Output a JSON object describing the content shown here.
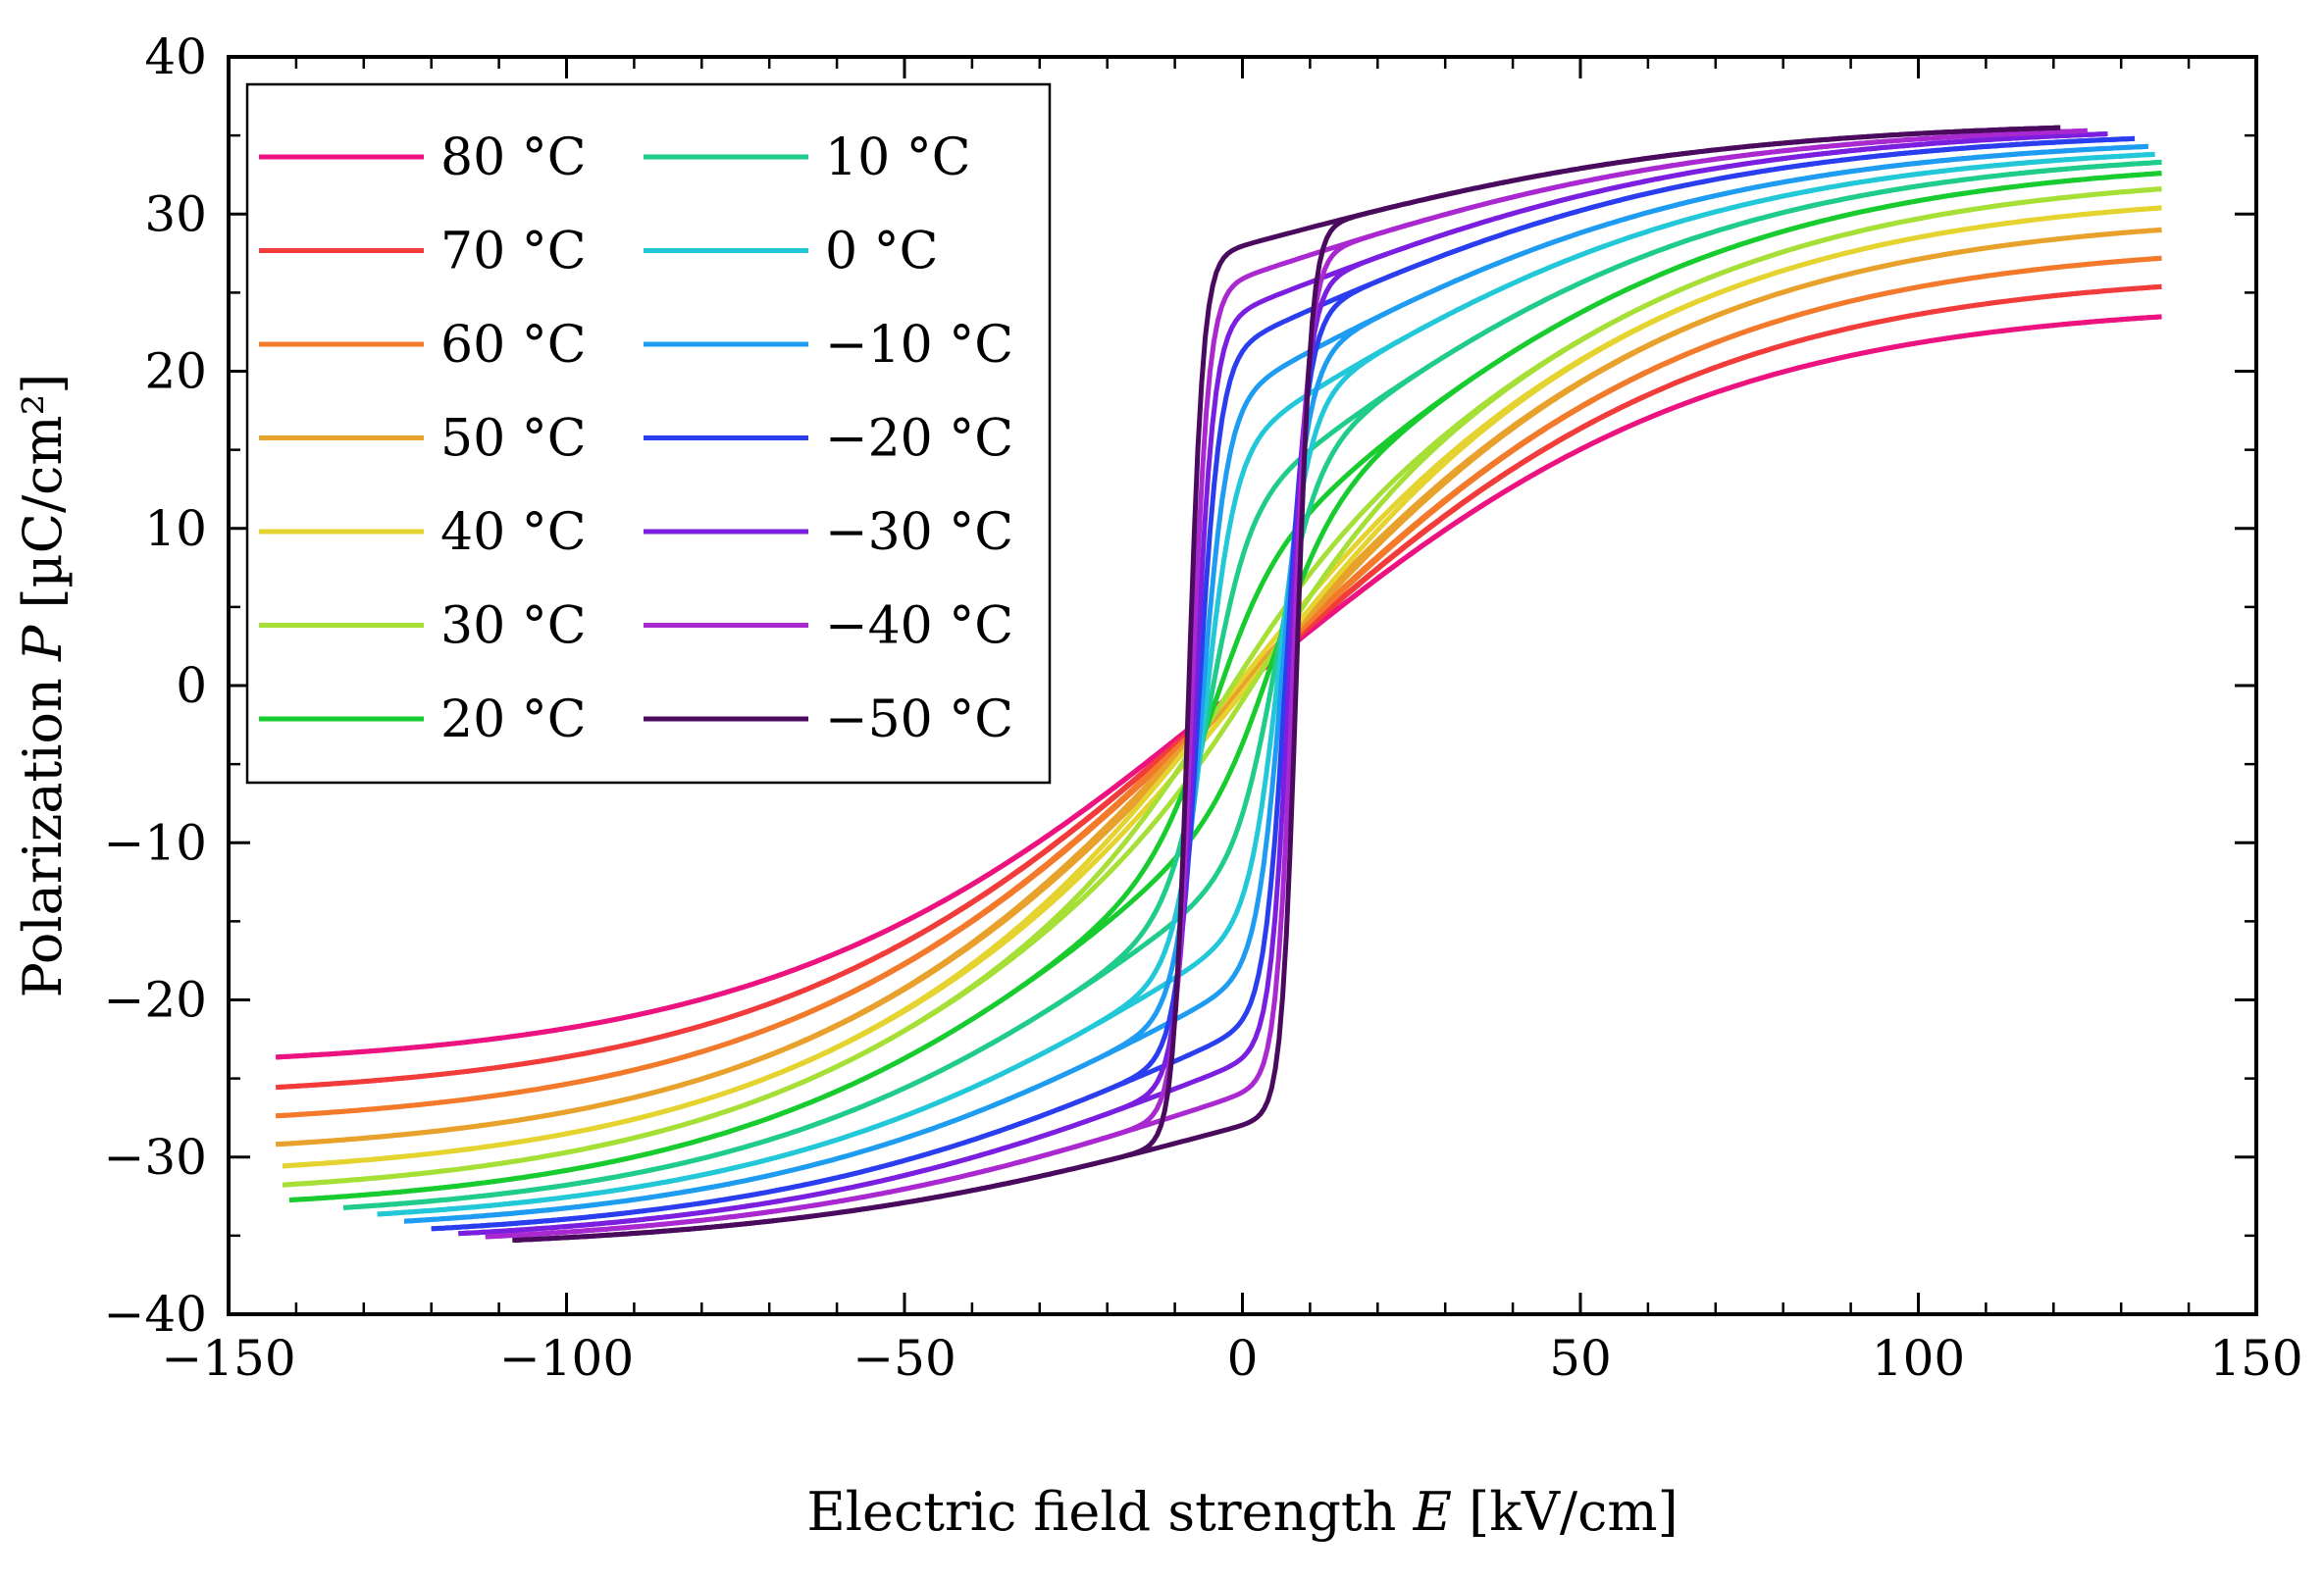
{
  "chart_data": {
    "type": "line",
    "title": "",
    "xlabel": {
      "text": "Electric field strength ",
      "symbol": "E",
      "unit": " [kV/cm]"
    },
    "ylabel": {
      "text": "Polarization ",
      "symbol": "P",
      "unit": " [µC/cm²]"
    },
    "xlim": [
      -150,
      150
    ],
    "ylim": [
      -40,
      40
    ],
    "xticks": [
      -150,
      -100,
      -50,
      0,
      50,
      100,
      150
    ],
    "yticks": [
      -40,
      -30,
      -20,
      -10,
      0,
      10,
      20,
      30,
      40
    ],
    "xtick_labels": [
      "−150",
      "−100",
      "−50",
      "0",
      "50",
      "100",
      "150"
    ],
    "ytick_labels": [
      "−40",
      "−30",
      "−20",
      "−10",
      "0",
      "10",
      "20",
      "30",
      "40"
    ],
    "grid": false,
    "legend_position": "top-left",
    "series": [
      {
        "name": "80 °C",
        "color": "#ec1380",
        "ec": 1.0,
        "ps": 1.0,
        "pmax": 23.5,
        "emax": 136,
        "emin": -143,
        "w": 65
      },
      {
        "name": "70 °C",
        "color": "#f23b3b",
        "ec": 1.5,
        "ps": 1.5,
        "pmax": 25.4,
        "emax": 136,
        "emin": -143,
        "w": 55
      },
      {
        "name": "60 °C",
        "color": "#f27a2a",
        "ec": 2.0,
        "ps": 2.0,
        "pmax": 27.2,
        "emax": 136,
        "emin": -143,
        "w": 45
      },
      {
        "name": "50 °C",
        "color": "#e8a22c",
        "ec": 2.5,
        "ps": 3.0,
        "pmax": 29.0,
        "emax": 136,
        "emin": -143,
        "w": 35
      },
      {
        "name": "40 °C",
        "color": "#e5d330",
        "ec": 3.0,
        "ps": 4.0,
        "pmax": 30.4,
        "emax": 136,
        "emin": -142,
        "w": 27
      },
      {
        "name": "30 °C",
        "color": "#a6df36",
        "ec": 3.5,
        "ps": 5.0,
        "pmax": 31.6,
        "emax": 136,
        "emin": -142,
        "w": 18
      },
      {
        "name": "20 °C",
        "color": "#18cc30",
        "ec": 4.5,
        "ps": 8.0,
        "pmax": 32.6,
        "emax": 136,
        "emin": -141,
        "w": 9
      },
      {
        "name": "10 °C",
        "color": "#1fcc8a",
        "ec": 5.0,
        "ps": 12.0,
        "pmax": 33.3,
        "emax": 136,
        "emin": -133,
        "w": 6
      },
      {
        "name": "0 °C",
        "color": "#22c8d8",
        "ec": 5.5,
        "ps": 16.0,
        "pmax": 33.8,
        "emax": 135,
        "emin": -128,
        "w": 4.5
      },
      {
        "name": "−10 °C",
        "color": "#1e9cf2",
        "ec": 6.0,
        "ps": 19.0,
        "pmax": 34.3,
        "emax": 134,
        "emin": -124,
        "w": 3.8
      },
      {
        "name": "−20 °C",
        "color": "#2a3ef0",
        "ec": 6.5,
        "ps": 22.0,
        "pmax": 34.8,
        "emax": 132,
        "emin": -120,
        "w": 3.2
      },
      {
        "name": "−30 °C",
        "color": "#7a1ee0",
        "ec": 7.0,
        "ps": 24.0,
        "pmax": 35.1,
        "emax": 128,
        "emin": -116,
        "w": 2.8
      },
      {
        "name": "−40 °C",
        "color": "#a928d0",
        "ec": 7.5,
        "ps": 26.0,
        "pmax": 35.3,
        "emax": 125,
        "emin": -112,
        "w": 2.5
      },
      {
        "name": "−50 °C",
        "color": "#4a0a5e",
        "ec": 8.0,
        "ps": 28.0,
        "pmax": 35.5,
        "emax": 121,
        "emin": -108,
        "w": 2.2
      }
    ]
  }
}
